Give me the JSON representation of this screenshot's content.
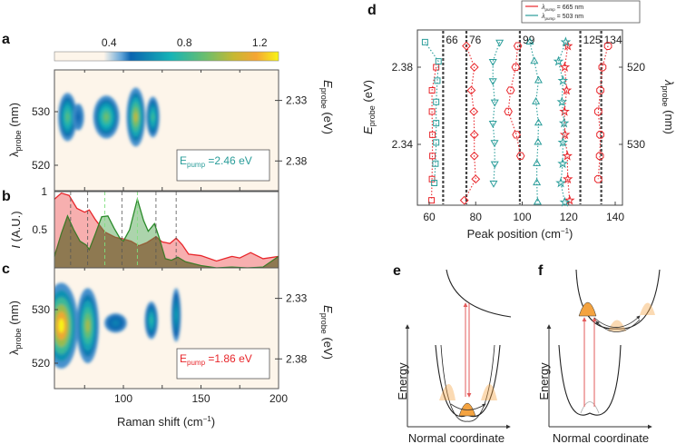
{
  "panels": {
    "a": "a",
    "b": "b",
    "c": "c",
    "d": "d",
    "e": "e",
    "f": "f"
  },
  "colors": {
    "red": "#e8262b",
    "cyan": "#2a9d9a",
    "green": "#2a8a2a",
    "map_bg": "#fdf5ea",
    "orange": "#f4a340"
  },
  "chart_data": [
    {
      "id": "colorbar",
      "type": "heatmap",
      "range": [
        0.11,
        1.3
      ],
      "tick_labels": [
        "0.4",
        "0.8",
        "1.2"
      ],
      "ticks": [
        0.4,
        0.8,
        1.2
      ]
    },
    {
      "id": "a",
      "type": "heatmap",
      "xlabel": "",
      "ylabel": "λprobe (nm)",
      "ylabel_main": "λ",
      "ylabel_sub": "probe",
      "ylabel_unit": " (nm)",
      "y2label_main": "E",
      "y2label_sub": "probe",
      "y2label_unit": " (eV)",
      "xlim": [
        55,
        200
      ],
      "ylim": [
        512,
        540
      ],
      "yticks": [
        "530",
        "520"
      ],
      "ytick_values": [
        530,
        520
      ],
      "y2ticks": [
        "2.33",
        "2.38"
      ],
      "y2tick_values": [
        532.1,
        520.8
      ],
      "annotation": {
        "main": "E",
        "sub": "pump",
        "value": " =2.46 eV"
      },
      "blobs": [
        {
          "shift": 64,
          "lambda": 529,
          "intensity": 0.85,
          "wx": 5,
          "wy": 4.5
        },
        {
          "shift": 71,
          "lambda": 529,
          "intensity": 0.45,
          "wx": 3,
          "wy": 2.5
        },
        {
          "shift": 89,
          "lambda": 529,
          "intensity": 0.9,
          "wx": 7,
          "wy": 4
        },
        {
          "shift": 108,
          "lambda": 529,
          "intensity": 1.05,
          "wx": 5,
          "wy": 5.5
        },
        {
          "shift": 119,
          "lambda": 529,
          "intensity": 0.8,
          "wx": 3.5,
          "wy": 3.8
        }
      ]
    },
    {
      "id": "b",
      "type": "area",
      "ylabel": "I (A.U.)",
      "ylabel_main": "I",
      "ylabel_unit": " (A.U.)",
      "xlim": [
        55,
        200
      ],
      "ylim": [
        0,
        1
      ],
      "yticks": [
        "1",
        "0.5"
      ],
      "ytick_values": [
        1,
        0.5
      ],
      "dashed_black": [
        66,
        77,
        99,
        121,
        134
      ],
      "dashed_green": [
        88,
        109
      ],
      "series": [
        {
          "name": "Epump 1.86 eV",
          "color": "#e8262b",
          "x": [
            55,
            60,
            65,
            70,
            75,
            78,
            82,
            88,
            95,
            100,
            105,
            110,
            115,
            121,
            125,
            130,
            134,
            138,
            142,
            150,
            160,
            170,
            175,
            182,
            190,
            200
          ],
          "y": [
            0.9,
            0.98,
            0.95,
            0.78,
            0.73,
            0.76,
            0.63,
            0.47,
            0.4,
            0.38,
            0.35,
            0.29,
            0.33,
            0.41,
            0.34,
            0.32,
            0.39,
            0.3,
            0.18,
            0.16,
            0.09,
            0.15,
            0.13,
            0.2,
            0.12,
            0.15
          ]
        },
        {
          "name": "Epump 2.46 eV",
          "color": "#2a8a2a",
          "x": [
            55,
            60,
            64,
            68,
            72,
            76,
            78,
            82,
            86,
            90,
            94,
            98,
            100,
            104,
            109,
            113,
            116,
            120,
            123,
            127,
            131,
            135,
            140,
            150,
            160,
            170,
            180,
            190,
            200
          ],
          "y": [
            0.15,
            0.45,
            0.68,
            0.5,
            0.35,
            0.3,
            0.24,
            0.45,
            0.67,
            0.68,
            0.52,
            0.38,
            0.35,
            0.5,
            0.9,
            0.62,
            0.48,
            0.58,
            0.4,
            0.12,
            0.1,
            0.14,
            0.08,
            0.03,
            0.0,
            0.01,
            0.0,
            0.01,
            0.15
          ]
        }
      ]
    },
    {
      "id": "c",
      "type": "heatmap",
      "xlabel": "Raman shift (cm−1)",
      "xlabel_main": "Raman shift (cm",
      "xlabel_sup": "−1",
      "xlabel_end": ")",
      "xticks": [
        "100",
        "150",
        "200"
      ],
      "xtick_values": [
        100,
        150,
        200
      ],
      "xlim": [
        55,
        200
      ],
      "ylim": [
        512,
        540
      ],
      "yticks": [
        "530",
        "520"
      ],
      "ytick_values": [
        530,
        520
      ],
      "y2ticks": [
        "2.33",
        "2.38"
      ],
      "y2tick_values": [
        532.1,
        520.8
      ],
      "annotation": {
        "main": "E",
        "sub": "pump",
        "value": " =1.86 eV"
      },
      "blobs": [
        {
          "shift": 60,
          "lambda": 527,
          "intensity": 1.35,
          "wx": 9,
          "wy": 8
        },
        {
          "shift": 77,
          "lambda": 527,
          "intensity": 1.0,
          "wx": 6,
          "wy": 7
        },
        {
          "shift": 95,
          "lambda": 527.5,
          "intensity": 0.55,
          "wx": 6,
          "wy": 1.8
        },
        {
          "shift": 118,
          "lambda": 528,
          "intensity": 0.75,
          "wx": 3.5,
          "wy": 3.5
        },
        {
          "shift": 134,
          "lambda": 529,
          "intensity": 0.65,
          "wx": 2.5,
          "wy": 5
        }
      ]
    },
    {
      "id": "d",
      "type": "scatter",
      "xlabel": "Peak position (cm−1)",
      "xlabel_main": "Peak position (cm",
      "xlabel_sup": "−1",
      "xlabel_end": ")",
      "ylabel_main": "E",
      "ylabel_sub": "probe",
      "ylabel_unit": " (eV)",
      "y2label_main": "λ",
      "y2label_sub": "probe",
      "y2label_unit": " (nm)",
      "xlim": [
        55,
        145
      ],
      "ylim": [
        2.304,
        2.399
      ],
      "xticks": [
        "60",
        "80",
        "100",
        "120",
        "140"
      ],
      "xtick_values": [
        60,
        80,
        100,
        120,
        140
      ],
      "yticks": [
        "2.38",
        "2.34"
      ],
      "ytick_values": [
        2.38,
        2.34
      ],
      "y2ticks": [
        "520",
        "530"
      ],
      "y2tick_values": [
        2.38,
        2.34
      ],
      "reference_lines": [
        66,
        76,
        99,
        125,
        134
      ],
      "reference_labels": [
        "66",
        "76",
        "99",
        "125",
        "134"
      ],
      "legend": {
        "position": "top",
        "entries": [
          {
            "main": "λ",
            "sub": "pump",
            "value": " = 665 nm",
            "color": "#e8262b"
          },
          {
            "main": "λ",
            "sub": "pump",
            "value": " = 503 nm",
            "color": "#2a9d9a"
          }
        ]
      },
      "series": [
        {
          "name": "665 nm squares",
          "color": "#e8262b",
          "marker": "square",
          "E": [
            2.38,
            2.368,
            2.357,
            2.345,
            2.334,
            2.322,
            2.311
          ],
          "x": [
            63.0,
            61.2,
            61.2,
            61.4,
            61.4,
            61.2,
            61.0
          ]
        },
        {
          "name": "665 nm diamonds",
          "color": "#e8262b",
          "marker": "diamond",
          "E": [
            2.391,
            2.38,
            2.368,
            2.357,
            2.345,
            2.334,
            2.322,
            2.311
          ],
          "x": [
            76.0,
            79.4,
            78.1,
            79.2,
            79.4,
            79.4,
            80.0,
            75.1
          ]
        },
        {
          "name": "665 nm hexagons",
          "color": "#e8262b",
          "marker": "hexagon",
          "E": [
            2.391,
            2.38,
            2.368,
            2.357,
            2.345,
            2.334
          ],
          "x": [
            98.1,
            97.2,
            95.0,
            94.0,
            97.5,
            99.3
          ]
        },
        {
          "name": "665 nm stars",
          "color": "#e8262b",
          "marker": "star",
          "E": [
            2.391,
            2.38,
            2.368,
            2.357,
            2.345,
            2.334,
            2.322,
            2.311
          ],
          "x": [
            119.6,
            118.3,
            119.1,
            118.2,
            118.4,
            119.4,
            119.6,
            120.4
          ]
        },
        {
          "name": "665 nm octagons",
          "color": "#e8262b",
          "marker": "octagon",
          "E": [
            2.391,
            2.38,
            2.368,
            2.357,
            2.345,
            2.334,
            2.322
          ],
          "x": [
            136.9,
            134.5,
            133.6,
            132.7,
            133.6,
            133.4,
            132.7
          ]
        },
        {
          "name": "503 nm squares",
          "color": "#2a9d9a",
          "marker": "square",
          "E": [
            2.393,
            2.383,
            2.373,
            2.362,
            2.351,
            2.341,
            2.33,
            2.32
          ],
          "x": [
            58.2,
            64.0,
            63.5,
            63.0,
            63.0,
            63.0,
            62.7,
            62.2
          ]
        },
        {
          "name": "503 nm down-triangles",
          "color": "#2a9d9a",
          "marker": "tri-down",
          "E": [
            2.393,
            2.383,
            2.373,
            2.362,
            2.351,
            2.341,
            2.33,
            2.32
          ],
          "x": [
            90.3,
            87.4,
            87.4,
            88.2,
            87.4,
            88.1,
            88.2,
            87.7
          ]
        },
        {
          "name": "503 nm up-triangles",
          "color": "#2a9d9a",
          "marker": "tri-up",
          "E": [
            2.393,
            2.383,
            2.373,
            2.362,
            2.351,
            2.341,
            2.33,
            2.32,
            2.31
          ],
          "x": [
            103.3,
            105.2,
            107.0,
            105.9,
            107.0,
            106.8,
            106.3,
            106.3,
            106.6
          ]
        },
        {
          "name": "503 nm stars",
          "color": "#2a9d9a",
          "marker": "star",
          "E": [
            2.393,
            2.383,
            2.373,
            2.362,
            2.351,
            2.341,
            2.33,
            2.32,
            2.31
          ],
          "x": [
            118.7,
            115.6,
            117.5,
            117.1,
            118.0,
            117.5,
            117.4,
            116.6,
            118.3
          ]
        }
      ]
    }
  ],
  "diagrams": {
    "e": {
      "ylabel": "Energy",
      "xlabel": "Normal coordinate"
    },
    "f": {
      "ylabel": "Energy",
      "xlabel": "Normal coordinate"
    }
  }
}
